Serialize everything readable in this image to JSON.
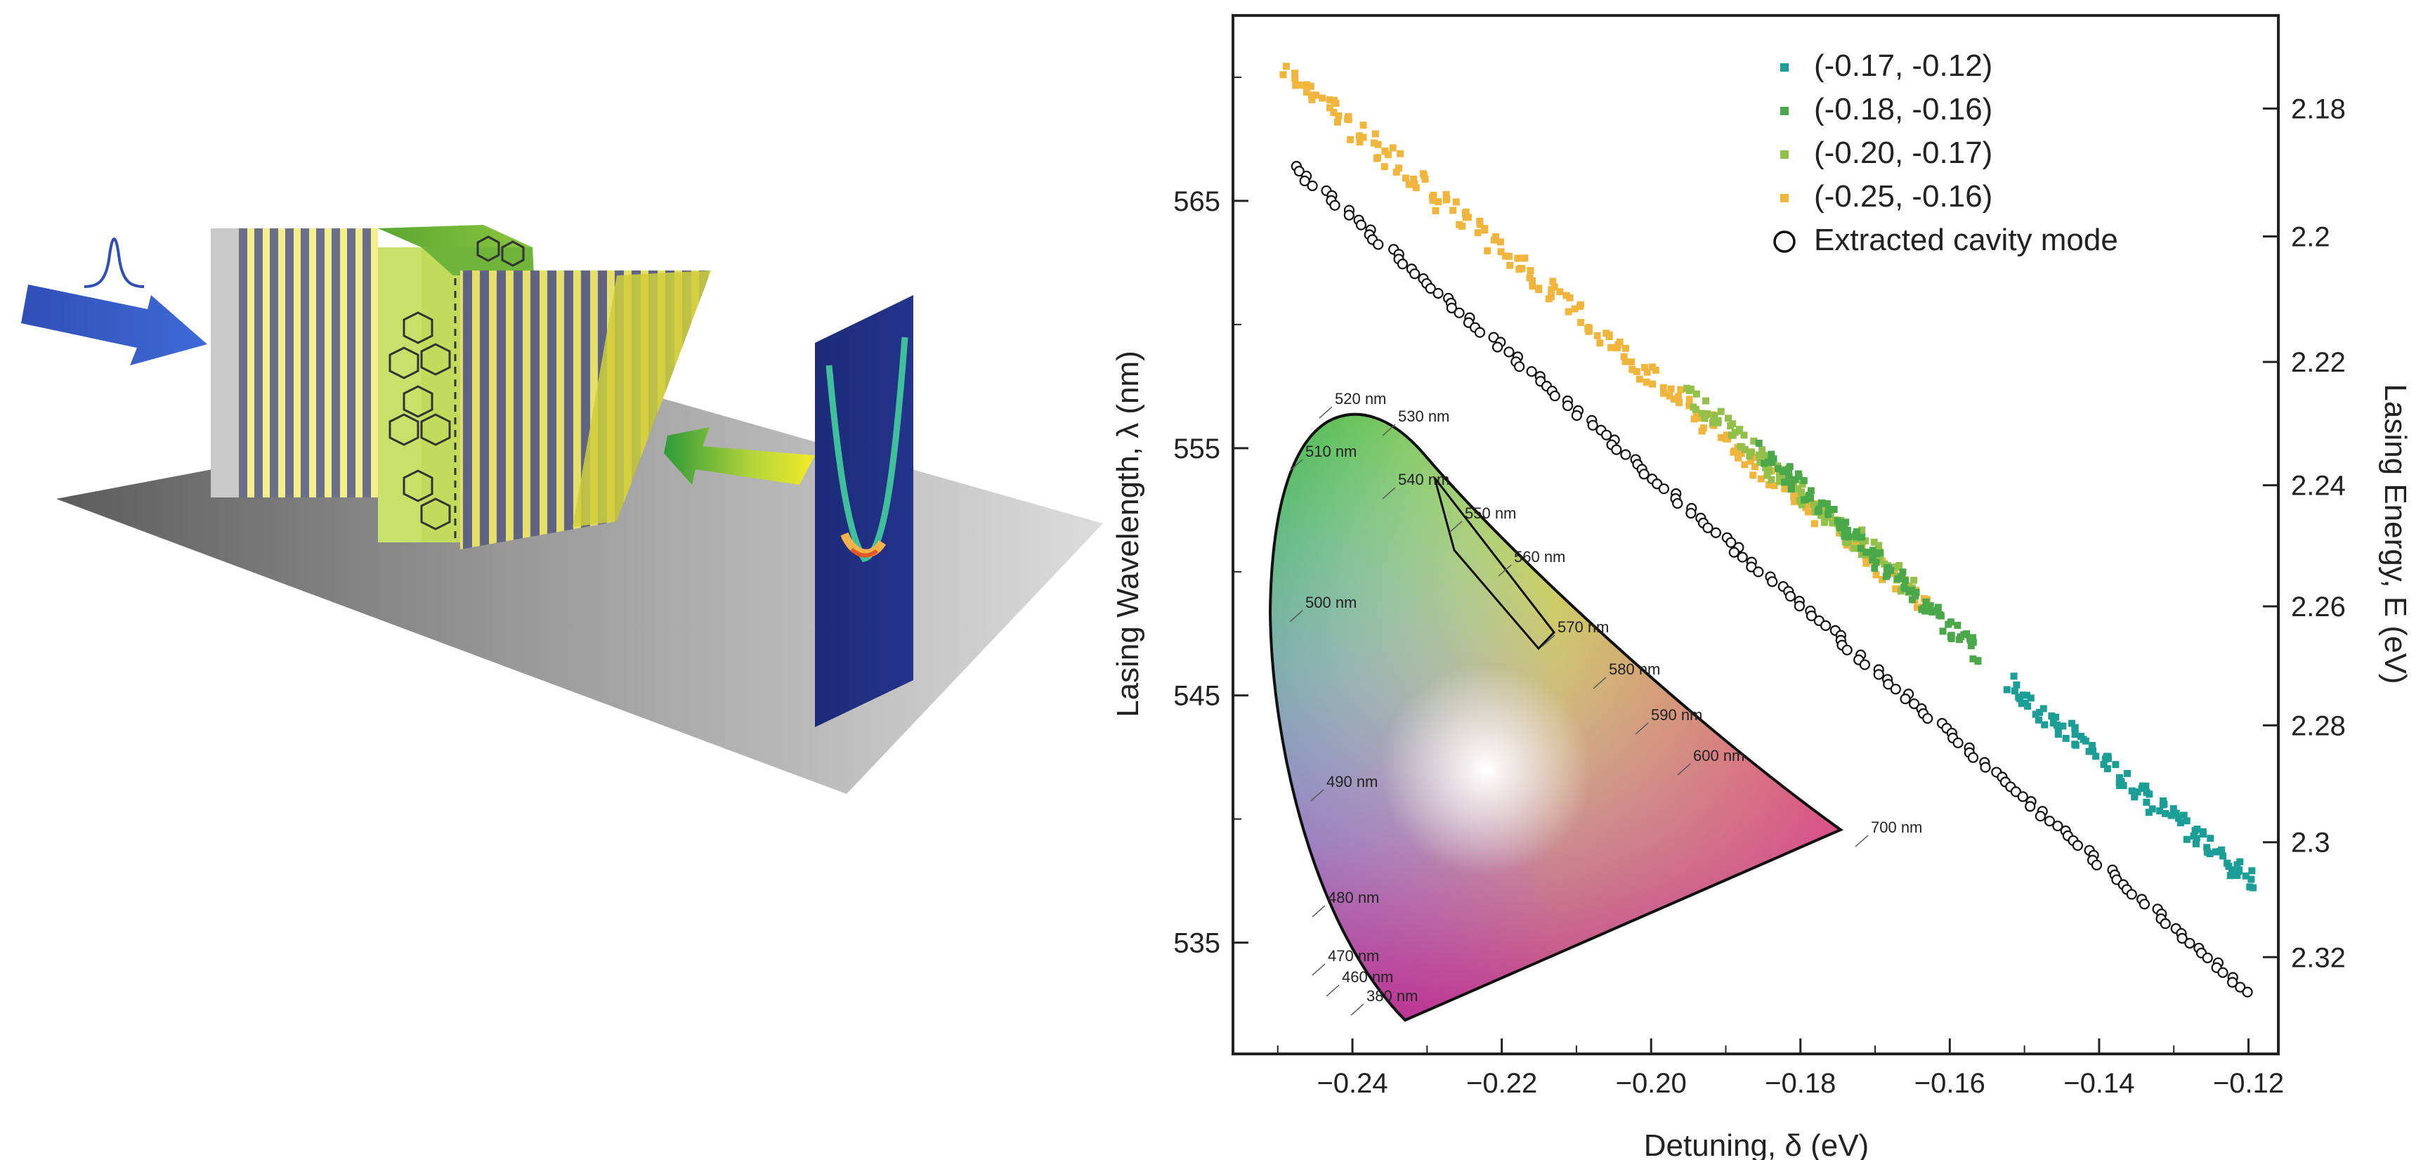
{
  "chart_data": {
    "type": "scatter",
    "xlabel": "Detuning, δ (eV)",
    "ylabel": "Lasing Wavelength, λ (nm)",
    "y2label": "Lasing Energy, E (eV)",
    "xlim": [
      -0.256,
      -0.116
    ],
    "ylim": [
      530.5,
      572.5
    ],
    "y2lim_energy": [
      2.337,
      2.166
    ],
    "x_ticks": [
      -0.24,
      -0.22,
      -0.2,
      -0.18,
      -0.16,
      -0.14,
      -0.12
    ],
    "x_tick_labels": [
      "−0.24",
      "−0.22",
      "−0.20",
      "−0.18",
      "−0.16",
      "−0.14",
      "−0.12"
    ],
    "y_ticks": [
      535,
      545,
      555,
      565
    ],
    "y_tick_labels": [
      "535",
      "545",
      "555",
      "565"
    ],
    "y2_ticks": [
      2.18,
      2.2,
      2.22,
      2.24,
      2.26,
      2.28,
      2.3,
      2.32
    ],
    "y2_tick_labels": [
      "2.18",
      "2.2",
      "2.22",
      "2.24",
      "2.26",
      "2.28",
      "2.3",
      "2.32"
    ],
    "legend_position": "top-right",
    "series": [
      {
        "name": "(-0.17, -0.12)",
        "color": "#1a9e96",
        "marker": "square",
        "x_range": [
          -0.152,
          -0.119
        ],
        "y_range": [
          545.4,
          537.4
        ]
      },
      {
        "name": "(-0.18, -0.16)",
        "color": "#4aa84a",
        "marker": "square",
        "x_range": [
          -0.185,
          -0.156
        ],
        "y_range": [
          554.9,
          546.6
        ]
      },
      {
        "name": "(-0.20, -0.17)",
        "color": "#93c04a",
        "marker": "square",
        "x_range": [
          -0.195,
          -0.165
        ],
        "y_range": [
          557.2,
          549.3
        ]
      },
      {
        "name": "(-0.25, -0.16)",
        "color": "#f0b53c",
        "marker": "square",
        "x_range": [
          -0.249,
          -0.163
        ],
        "y_range": [
          570.3,
          548.6
        ]
      },
      {
        "name": "Extracted cavity mode",
        "color": "#000000",
        "marker": "open-circle",
        "x_range": [
          -0.248,
          -0.12
        ],
        "y_range": [
          566.4,
          533.0
        ]
      }
    ]
  },
  "inset": {
    "wavelength_labels": [
      "520 nm",
      "530 nm",
      "510 nm",
      "540 nm",
      "550 nm",
      "560 nm",
      "500 nm",
      "570 nm",
      "580 nm",
      "590 nm",
      "600 nm",
      "490 nm",
      "700 nm",
      "480 nm",
      "470 nm",
      "460 nm",
      "380 nm"
    ]
  }
}
